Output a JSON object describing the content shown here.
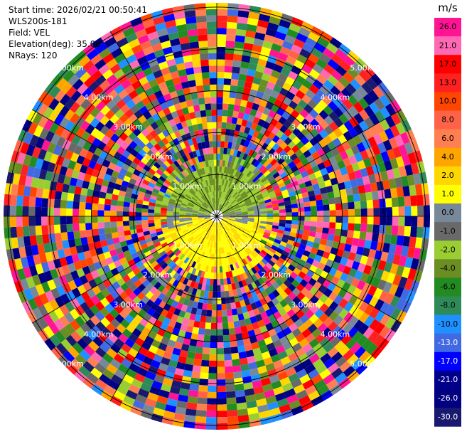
{
  "info": {
    "start_time": "Start time: 2026/02/21 00:50:41",
    "instrument": "WLS200s-181",
    "field": "Field: VEL",
    "elevation": "Elevation(deg): 35.00",
    "nrays": "NRays: 120"
  },
  "chart_data": {
    "type": "heatmap",
    "projection": "polar-ppi",
    "field": "VEL",
    "units": "m/s",
    "n_rays": 120,
    "range_rings_km": [
      1,
      2,
      3,
      4,
      5
    ],
    "range_ring_labels": [
      "1.00km",
      "2.00km",
      "3.00km",
      "4.00km",
      "5.00km"
    ],
    "max_range_km": 5.1,
    "colorbar": {
      "label": "m/s",
      "ticks": [
        "26.0",
        "21.0",
        "17.0",
        "13.0",
        "10.0",
        "8.0",
        "6.0",
        "4.0",
        "2.0",
        "1.0",
        "0.0",
        "-1.0",
        "-2.0",
        "-4.0",
        "-6.0",
        "-8.0",
        "-10.0",
        "-13.0",
        "-17.0",
        "-21.0",
        "-26.0",
        "-30.0"
      ],
      "colors": [
        "#ff1493",
        "#ff69b4",
        "#ff0000",
        "#ff2020",
        "#ff4500",
        "#ff6347",
        "#ff7f50",
        "#ffa500",
        "#ffd700",
        "#ffff00",
        "#778899",
        "#696969",
        "#9acd32",
        "#6b8e23",
        "#228b22",
        "#2e8b57",
        "#1e90ff",
        "#4169e1",
        "#0000ff",
        "#00008b",
        "#000080",
        "#191970"
      ]
    },
    "coherent_region_km": 1.0,
    "notes_sectors": {
      "north_half_velocity_mps": [
        -2.0,
        -1.0
      ],
      "south_half_velocity_mps": [
        1.0,
        4.0
      ]
    }
  }
}
